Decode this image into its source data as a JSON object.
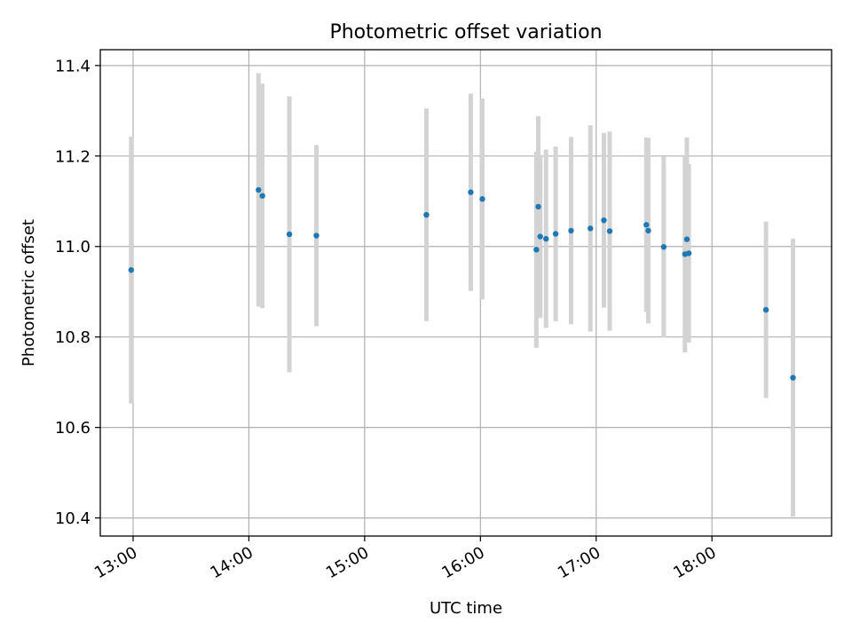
{
  "chart_data": {
    "type": "scatter",
    "title": "Photometric offset variation",
    "xlabel": "UTC time",
    "ylabel": "Photometric offset",
    "x_ticks": [
      "13:00",
      "14:00",
      "15:00",
      "16:00",
      "17:00",
      "18:00"
    ],
    "y_ticks": [
      "10.4",
      "10.6",
      "10.8",
      "11.0",
      "11.2",
      "11.4"
    ],
    "xlim": [
      "12:43",
      "19:02"
    ],
    "ylim": [
      10.36,
      11.435
    ],
    "grid": true,
    "colors": {
      "point": "#1f77b4",
      "errorbar": "#d3d3d3",
      "grid": "#b0b0b0"
    },
    "points": [
      {
        "x": "12:59",
        "y": 10.948,
        "err": 0.295
      },
      {
        "x": "14:05",
        "y": 11.125,
        "err": 0.258
      },
      {
        "x": "14:07",
        "y": 11.112,
        "err": 0.248
      },
      {
        "x": "14:21",
        "y": 11.027,
        "err": 0.305
      },
      {
        "x": "14:35",
        "y": 11.024,
        "err": 0.2
      },
      {
        "x": "15:32",
        "y": 11.07,
        "err": 0.235
      },
      {
        "x": "15:55",
        "y": 11.12,
        "err": 0.218
      },
      {
        "x": "16:01",
        "y": 11.105,
        "err": 0.222
      },
      {
        "x": "16:29",
        "y": 10.993,
        "err": 0.217
      },
      {
        "x": "16:30",
        "y": 11.088,
        "err": 0.2
      },
      {
        "x": "16:31",
        "y": 11.022,
        "err": 0.18
      },
      {
        "x": "16:34",
        "y": 11.017,
        "err": 0.197
      },
      {
        "x": "16:39",
        "y": 11.028,
        "err": 0.193
      },
      {
        "x": "16:47",
        "y": 11.035,
        "err": 0.207
      },
      {
        "x": "16:57",
        "y": 11.04,
        "err": 0.228
      },
      {
        "x": "17:04",
        "y": 11.058,
        "err": 0.193
      },
      {
        "x": "17:07",
        "y": 11.034,
        "err": 0.22
      },
      {
        "x": "17:26",
        "y": 11.048,
        "err": 0.193
      },
      {
        "x": "17:27",
        "y": 11.035,
        "err": 0.205
      },
      {
        "x": "17:35",
        "y": 10.999,
        "err": 0.2
      },
      {
        "x": "17:46",
        "y": 10.983,
        "err": 0.217
      },
      {
        "x": "17:47",
        "y": 11.016,
        "err": 0.225
      },
      {
        "x": "17:48",
        "y": 10.985,
        "err": 0.197
      },
      {
        "x": "18:28",
        "y": 10.86,
        "err": 0.195
      },
      {
        "x": "18:42",
        "y": 10.71,
        "err": 0.307
      }
    ]
  }
}
